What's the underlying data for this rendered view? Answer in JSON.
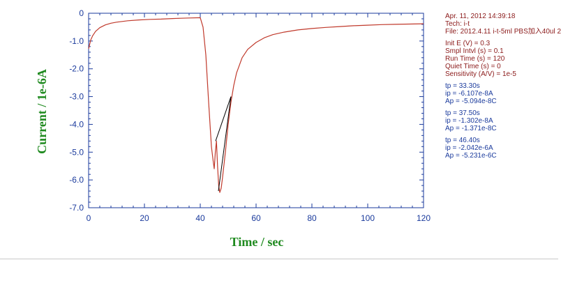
{
  "chart_data": {
    "type": "line",
    "title": "",
    "xlabel": "Time / sec",
    "ylabel": "Current / 1e-6A",
    "xlim": [
      0,
      120
    ],
    "ylim": [
      -7.0,
      0
    ],
    "x_ticks": [
      "0",
      "20",
      "40",
      "60",
      "80",
      "100",
      "120"
    ],
    "y_ticks": [
      "0",
      "-1.0",
      "-2.0",
      "-3.0",
      "-4.0",
      "-5.0",
      "-6.0",
      "-7.0"
    ],
    "grid": false,
    "series": [
      {
        "color": "#c0392b",
        "x": [
          0,
          0.3,
          0.8,
          1.5,
          2.5,
          4,
          6,
          8,
          10,
          14,
          18,
          22,
          26,
          30,
          33,
          36,
          40,
          41,
          42,
          43,
          44,
          44.6,
          45,
          45.4,
          45.8,
          46.2,
          46.6,
          47,
          47.5,
          48,
          49,
          50,
          51,
          52,
          53,
          55,
          57,
          60,
          63,
          66,
          70,
          75,
          80,
          85,
          90,
          95,
          100,
          105,
          110,
          115,
          120
        ],
        "y": [
          -1.28,
          -1.15,
          -0.95,
          -0.8,
          -0.65,
          -0.52,
          -0.42,
          -0.36,
          -0.32,
          -0.27,
          -0.24,
          -0.22,
          -0.21,
          -0.19,
          -0.18,
          -0.17,
          -0.16,
          -0.5,
          -1.5,
          -3.2,
          -4.8,
          -5.3,
          -5.6,
          -5.0,
          -4.6,
          -5.5,
          -6.2,
          -6.45,
          -6.3,
          -5.9,
          -5.0,
          -4.0,
          -3.2,
          -2.6,
          -2.15,
          -1.6,
          -1.3,
          -1.05,
          -0.88,
          -0.77,
          -0.68,
          -0.6,
          -0.55,
          -0.51,
          -0.48,
          -0.45,
          -0.43,
          -0.41,
          -0.4,
          -0.39,
          -0.38
        ]
      }
    ],
    "annotations": [
      {
        "color": "#000000",
        "x": [
          45.5,
          51
        ],
        "y": [
          -4.6,
          -3.0
        ]
      },
      {
        "color": "#000000",
        "x": [
          46.5,
          51
        ],
        "y": [
          -6.4,
          -3.0
        ]
      }
    ],
    "colors": {
      "axis": "#1a3a9c",
      "axis_title": "#1f8a1f",
      "info_header": "#8b1a1a",
      "info_results": "#1a3a9c"
    }
  },
  "info": {
    "header": [
      "Apr. 11, 2012   14:39:18",
      "Tech: i-t",
      "File: 2012.4.11 i-t-5ml PBS加入40ul 2"
    ],
    "params": [
      "Init E (V) = 0.3",
      "Smpl Intvl (s) = 0.1",
      "Run Time (s) = 120",
      "Quiet Time (s) = 0",
      "Sensitivity (A/V) = 1e-5"
    ],
    "results": [
      [
        "tp = 33.30s",
        "ip = -6.107e-8A",
        "Ap = -5.094e-8C"
      ],
      [
        "tp = 37.50s",
        "ip = -1.302e-8A",
        "Ap = -1.371e-8C"
      ],
      [
        "tp = 46.40s",
        "ip = -2.042e-6A",
        "Ap = -5.231e-6C"
      ]
    ]
  }
}
